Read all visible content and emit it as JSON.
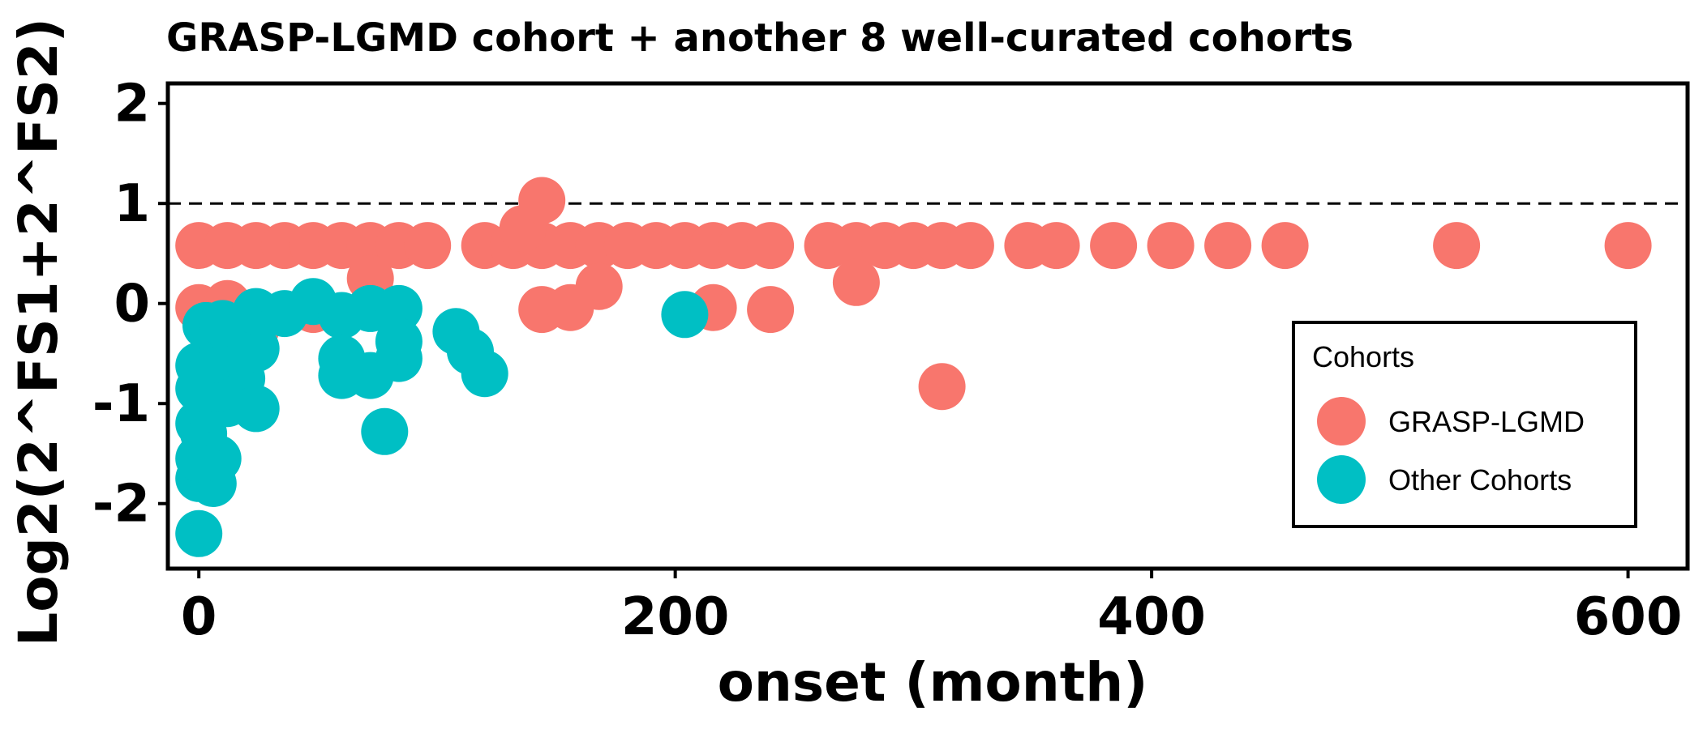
{
  "chart_data": {
    "type": "scatter",
    "title": "GRASP-LGMD cohort + another 8 well-curated cohorts",
    "xlabel": "onset (month)",
    "ylabel": "Log2(2^FS1+2^FS2)",
    "xlim": [
      -13,
      625
    ],
    "ylim": [
      -2.65,
      2.2
    ],
    "xticks": [
      0,
      200,
      400,
      600
    ],
    "yticks": [
      -2,
      -1,
      0,
      1,
      2
    ],
    "reference_line": {
      "y": 1,
      "style": "dashed"
    },
    "grid": false,
    "legend": {
      "title": "Cohorts",
      "position": "bottom-right",
      "entries": [
        "GRASP-LGMD",
        "Other Cohorts"
      ]
    },
    "series": [
      {
        "name": "GRASP-LGMD",
        "color": "#F8766D",
        "points": [
          [
            0,
            0.58
          ],
          [
            12,
            0.58
          ],
          [
            24,
            0.58
          ],
          [
            36,
            0.58
          ],
          [
            48,
            0.58
          ],
          [
            60,
            0.58
          ],
          [
            72,
            0.58
          ],
          [
            84,
            0.58
          ],
          [
            96,
            0.58
          ],
          [
            120,
            0.58
          ],
          [
            132,
            0.58
          ],
          [
            144,
            0.58
          ],
          [
            156,
            0.58
          ],
          [
            168,
            0.58
          ],
          [
            180,
            0.58
          ],
          [
            192,
            0.58
          ],
          [
            204,
            0.58
          ],
          [
            216,
            0.58
          ],
          [
            228,
            0.58
          ],
          [
            240,
            0.58
          ],
          [
            264,
            0.58
          ],
          [
            276,
            0.58
          ],
          [
            288,
            0.58
          ],
          [
            300,
            0.58
          ],
          [
            312,
            0.58
          ],
          [
            324,
            0.58
          ],
          [
            348,
            0.58
          ],
          [
            360,
            0.58
          ],
          [
            384,
            0.58
          ],
          [
            408,
            0.58
          ],
          [
            432,
            0.58
          ],
          [
            456,
            0.58
          ],
          [
            528,
            0.58
          ],
          [
            600,
            0.58
          ],
          [
            136,
            0.75
          ],
          [
            144,
            1.03
          ],
          [
            72,
            0.25
          ],
          [
            168,
            0.17
          ],
          [
            276,
            0.21
          ],
          [
            0,
            -0.04
          ],
          [
            12,
            0.0
          ],
          [
            48,
            -0.06
          ],
          [
            144,
            -0.06
          ],
          [
            156,
            -0.04
          ],
          [
            216,
            -0.04
          ],
          [
            240,
            -0.06
          ],
          [
            24,
            -0.25
          ],
          [
            312,
            -0.83
          ]
        ]
      },
      {
        "name": "Other Cohorts",
        "color": "#00BFC4",
        "points": [
          [
            0,
            -2.3
          ],
          [
            0,
            -1.75
          ],
          [
            6,
            -1.8
          ],
          [
            8,
            -1.55
          ],
          [
            0,
            -1.55
          ],
          [
            2,
            -1.3
          ],
          [
            0,
            -1.2
          ],
          [
            4,
            -1.05
          ],
          [
            12,
            -1.0
          ],
          [
            0,
            -0.85
          ],
          [
            8,
            -0.85
          ],
          [
            14,
            -0.8
          ],
          [
            18,
            -0.75
          ],
          [
            0,
            -0.62
          ],
          [
            6,
            -0.55
          ],
          [
            10,
            -0.45
          ],
          [
            14,
            -0.38
          ],
          [
            18,
            -0.3
          ],
          [
            3,
            -0.22
          ],
          [
            10,
            -0.2
          ],
          [
            24,
            -0.45
          ],
          [
            24,
            -1.05
          ],
          [
            24,
            -0.08
          ],
          [
            36,
            -0.1
          ],
          [
            48,
            0.02
          ],
          [
            60,
            -0.12
          ],
          [
            72,
            -0.05
          ],
          [
            84,
            -0.05
          ],
          [
            60,
            -0.55
          ],
          [
            60,
            -0.72
          ],
          [
            72,
            -0.72
          ],
          [
            84,
            -0.55
          ],
          [
            84,
            -0.38
          ],
          [
            78,
            -1.28
          ],
          [
            108,
            -0.28
          ],
          [
            114,
            -0.48
          ],
          [
            120,
            -0.7
          ],
          [
            204,
            -0.11
          ]
        ]
      }
    ]
  }
}
